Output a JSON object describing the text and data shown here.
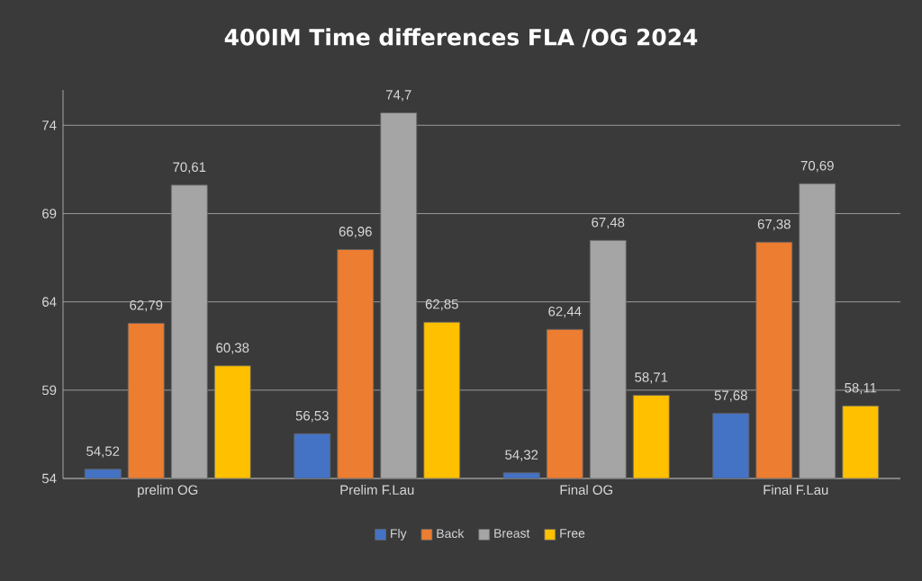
{
  "chart_data": {
    "type": "bar",
    "title": "400IM Time differences FLA /OG 2024",
    "categories": [
      "prelim OG",
      "Prelim F.Lau",
      "Final OG",
      "Final F.Lau"
    ],
    "series": [
      {
        "name": "Fly",
        "color": "#4472c4",
        "values": [
          54.52,
          56.53,
          54.32,
          57.68
        ],
        "value_labels": [
          "54,52",
          "56,53",
          "54,32",
          "57,68"
        ]
      },
      {
        "name": "Back",
        "color": "#ed7d31",
        "values": [
          62.79,
          66.96,
          62.44,
          67.38
        ],
        "value_labels": [
          "62,79",
          "66,96",
          "62,44",
          "67,38"
        ]
      },
      {
        "name": "Breast",
        "color": "#a5a5a5",
        "values": [
          70.61,
          74.7,
          67.48,
          70.69
        ],
        "value_labels": [
          "70,61",
          "74,7",
          "67,48",
          "70,69"
        ]
      },
      {
        "name": "Free",
        "color": "#ffc000",
        "values": [
          60.38,
          62.85,
          58.71,
          58.11
        ],
        "value_labels": [
          "60,38",
          "62,85",
          "58,71",
          "58,11"
        ]
      }
    ],
    "ylim": [
      54,
      76
    ],
    "yticks": [
      54,
      59,
      64,
      69,
      74
    ],
    "grid": "y",
    "legend": "bottom"
  }
}
